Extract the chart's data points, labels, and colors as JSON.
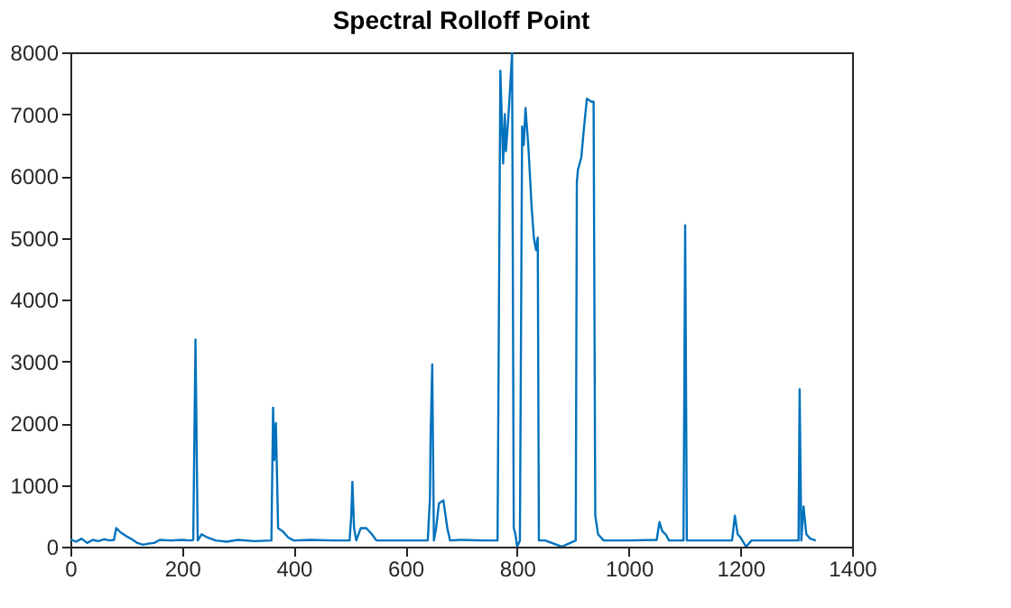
{
  "chart_data": {
    "type": "line",
    "title": "Spectral Rolloff Point",
    "x": [
      0,
      10,
      20,
      30,
      40,
      50,
      60,
      70,
      78,
      82,
      90,
      100,
      110,
      120,
      130,
      140,
      150,
      160,
      180,
      200,
      215,
      220,
      224,
      228,
      235,
      245,
      260,
      280,
      300,
      330,
      360,
      363,
      365,
      368,
      372,
      380,
      390,
      400,
      430,
      470,
      500,
      503,
      505,
      508,
      512,
      520,
      530,
      540,
      548,
      560,
      600,
      640,
      644,
      645,
      648,
      651,
      655,
      660,
      668,
      675,
      680,
      700,
      740,
      765,
      770,
      775,
      778,
      780,
      784,
      788,
      791,
      794,
      797,
      800,
      805,
      809,
      812,
      815,
      820,
      823,
      826,
      830,
      834,
      837,
      839,
      850,
      880,
      905,
      907,
      909,
      915,
      920,
      925,
      933,
      937,
      940,
      945,
      955,
      1000,
      1050,
      1055,
      1060,
      1066,
      1072,
      1090,
      1098,
      1101,
      1104,
      1110,
      1150,
      1185,
      1190,
      1195,
      1200,
      1210,
      1220,
      1260,
      1300,
      1304,
      1306,
      1309,
      1313,
      1318,
      1325,
      1335
    ],
    "series": [
      {
        "color": "#0072bd",
        "values": [
          120,
          80,
          130,
          60,
          110,
          90,
          120,
          100,
          110,
          300,
          230,
          170,
          120,
          60,
          30,
          50,
          60,
          110,
          100,
          110,
          100,
          110,
          3350,
          100,
          200,
          150,
          100,
          80,
          110,
          90,
          100,
          2250,
          1400,
          2000,
          300,
          250,
          150,
          100,
          110,
          100,
          100,
          500,
          1050,
          300,
          100,
          300,
          300,
          200,
          100,
          100,
          100,
          100,
          800,
          1750,
          2950,
          100,
          300,
          700,
          750,
          300,
          100,
          110,
          100,
          100,
          7700,
          6200,
          7000,
          6400,
          6900,
          7500,
          8000,
          300,
          200,
          0,
          100,
          6800,
          6500,
          7100,
          6500,
          6000,
          5500,
          5000,
          4800,
          5000,
          100,
          100,
          0,
          100,
          5900,
          6100,
          6300,
          6800,
          7250,
          7200,
          7200,
          500,
          200,
          100,
          100,
          110,
          400,
          250,
          200,
          100,
          100,
          100,
          5200,
          100,
          100,
          100,
          100,
          500,
          200,
          150,
          0,
          100,
          100,
          100,
          100,
          2550,
          100,
          650,
          200,
          130,
          100
        ]
      }
    ],
    "xlim": [
      0,
      1400
    ],
    "ylim": [
      0,
      8000
    ],
    "xticks": [
      0,
      200,
      400,
      600,
      800,
      1000,
      1200,
      1400
    ],
    "yticks": [
      0,
      1000,
      2000,
      3000,
      4000,
      5000,
      6000,
      7000,
      8000
    ],
    "grid": false,
    "legend": false
  }
}
